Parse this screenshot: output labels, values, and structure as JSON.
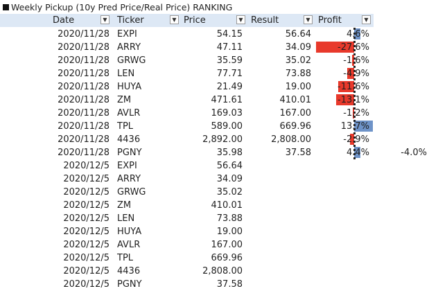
{
  "title": "Weekly Pickup (10y Pred Price/Real Price) RANKING",
  "headers": {
    "date": "Date",
    "ticker": "Ticker",
    "price": "Price",
    "result": "Result",
    "profit": "Profit"
  },
  "filter_icons": {
    "date": "▼",
    "ticker": "▼",
    "price": "▼",
    "result": "▼",
    "profit": "▼"
  },
  "colors": {
    "negative_bar": "#e8392b",
    "positive_bar": "#6e93c8",
    "header_bg": "#dde8f5"
  },
  "rows": [
    {
      "date": "2020/11/28",
      "ticker": "EXPI",
      "price": "54.15",
      "result": "56.64",
      "profit": "4.6%",
      "profit_value": 4.6
    },
    {
      "date": "2020/11/28",
      "ticker": "ARRY",
      "price": "47.11",
      "result": "34.09",
      "profit": "-27.6%",
      "profit_value": -27.6
    },
    {
      "date": "2020/11/28",
      "ticker": "GRWG",
      "price": "35.59",
      "result": "35.02",
      "profit": "-1.6%",
      "profit_value": -1.6
    },
    {
      "date": "2020/11/28",
      "ticker": "LEN",
      "price": "77.71",
      "result": "73.88",
      "profit": "-4.9%",
      "profit_value": -4.9
    },
    {
      "date": "2020/11/28",
      "ticker": "HUYA",
      "price": "21.49",
      "result": "19.00",
      "profit": "-11.6%",
      "profit_value": -11.6
    },
    {
      "date": "2020/11/28",
      "ticker": "ZM",
      "price": "471.61",
      "result": "410.01",
      "profit": "-13.1%",
      "profit_value": -13.1
    },
    {
      "date": "2020/11/28",
      "ticker": "AVLR",
      "price": "169.03",
      "result": "167.00",
      "profit": "-1.2%",
      "profit_value": -1.2
    },
    {
      "date": "2020/11/28",
      "ticker": "TPL",
      "price": "589.00",
      "result": "669.96",
      "profit": "13.7%",
      "profit_value": 13.7
    },
    {
      "date": "2020/11/28",
      "ticker": "4436",
      "price": "2,892.00",
      "result": "2,808.00",
      "profit": "-2.9%",
      "profit_value": -2.9
    },
    {
      "date": "2020/11/28",
      "ticker": "PGNY",
      "price": "35.98",
      "result": "37.58",
      "profit": "4.4%",
      "profit_value": 4.4,
      "extra": "-4.0%"
    },
    {
      "date": "2020/12/5",
      "ticker": "EXPI",
      "price": "56.64",
      "result": "",
      "profit": ""
    },
    {
      "date": "2020/12/5",
      "ticker": "ARRY",
      "price": "34.09",
      "result": "",
      "profit": ""
    },
    {
      "date": "2020/12/5",
      "ticker": "GRWG",
      "price": "35.02",
      "result": "",
      "profit": ""
    },
    {
      "date": "2020/12/5",
      "ticker": "ZM",
      "price": "410.01",
      "result": "",
      "profit": ""
    },
    {
      "date": "2020/12/5",
      "ticker": "LEN",
      "price": "73.88",
      "result": "",
      "profit": ""
    },
    {
      "date": "2020/12/5",
      "ticker": "HUYA",
      "price": "19.00",
      "result": "",
      "profit": ""
    },
    {
      "date": "2020/12/5",
      "ticker": "AVLR",
      "price": "167.00",
      "result": "",
      "profit": ""
    },
    {
      "date": "2020/12/5",
      "ticker": "TPL",
      "price": "669.96",
      "result": "",
      "profit": ""
    },
    {
      "date": "2020/12/5",
      "ticker": "4436",
      "price": "2,808.00",
      "result": "",
      "profit": ""
    },
    {
      "date": "2020/12/5",
      "ticker": "PGNY",
      "price": "37.58",
      "result": "",
      "profit": ""
    }
  ]
}
